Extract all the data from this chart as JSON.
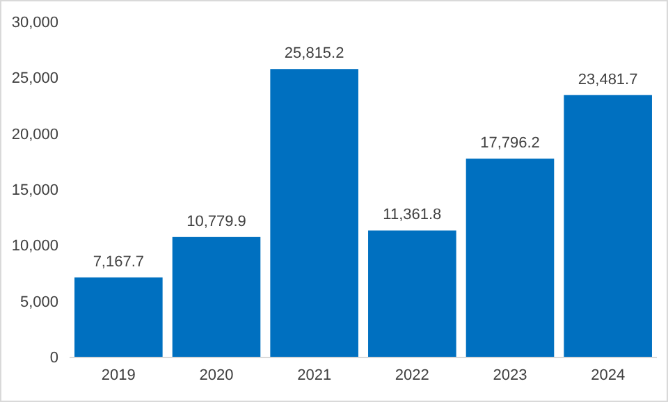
{
  "chart_data": {
    "type": "bar",
    "categories": [
      "2019",
      "2020",
      "2021",
      "2022",
      "2023",
      "2024"
    ],
    "values": [
      7167.7,
      10779.9,
      25815.2,
      11361.8,
      17796.2,
      23481.7
    ],
    "color": "#0070c0",
    "ylim": [
      0,
      30000
    ],
    "yticks": [
      {
        "value": 0,
        "label": "0"
      },
      {
        "value": 5000,
        "label": "5,000"
      },
      {
        "value": 10000,
        "label": "10,000"
      },
      {
        "value": 15000,
        "label": "15,000"
      },
      {
        "value": 20000,
        "label": "20,000"
      },
      {
        "value": 25000,
        "label": "25,000"
      },
      {
        "value": 30000,
        "label": "30,000"
      }
    ],
    "value_labels": [
      "7,167.7",
      "10,779.9",
      "25,815.2",
      "11,361.8",
      "17,796.2",
      "23,481.7"
    ]
  }
}
